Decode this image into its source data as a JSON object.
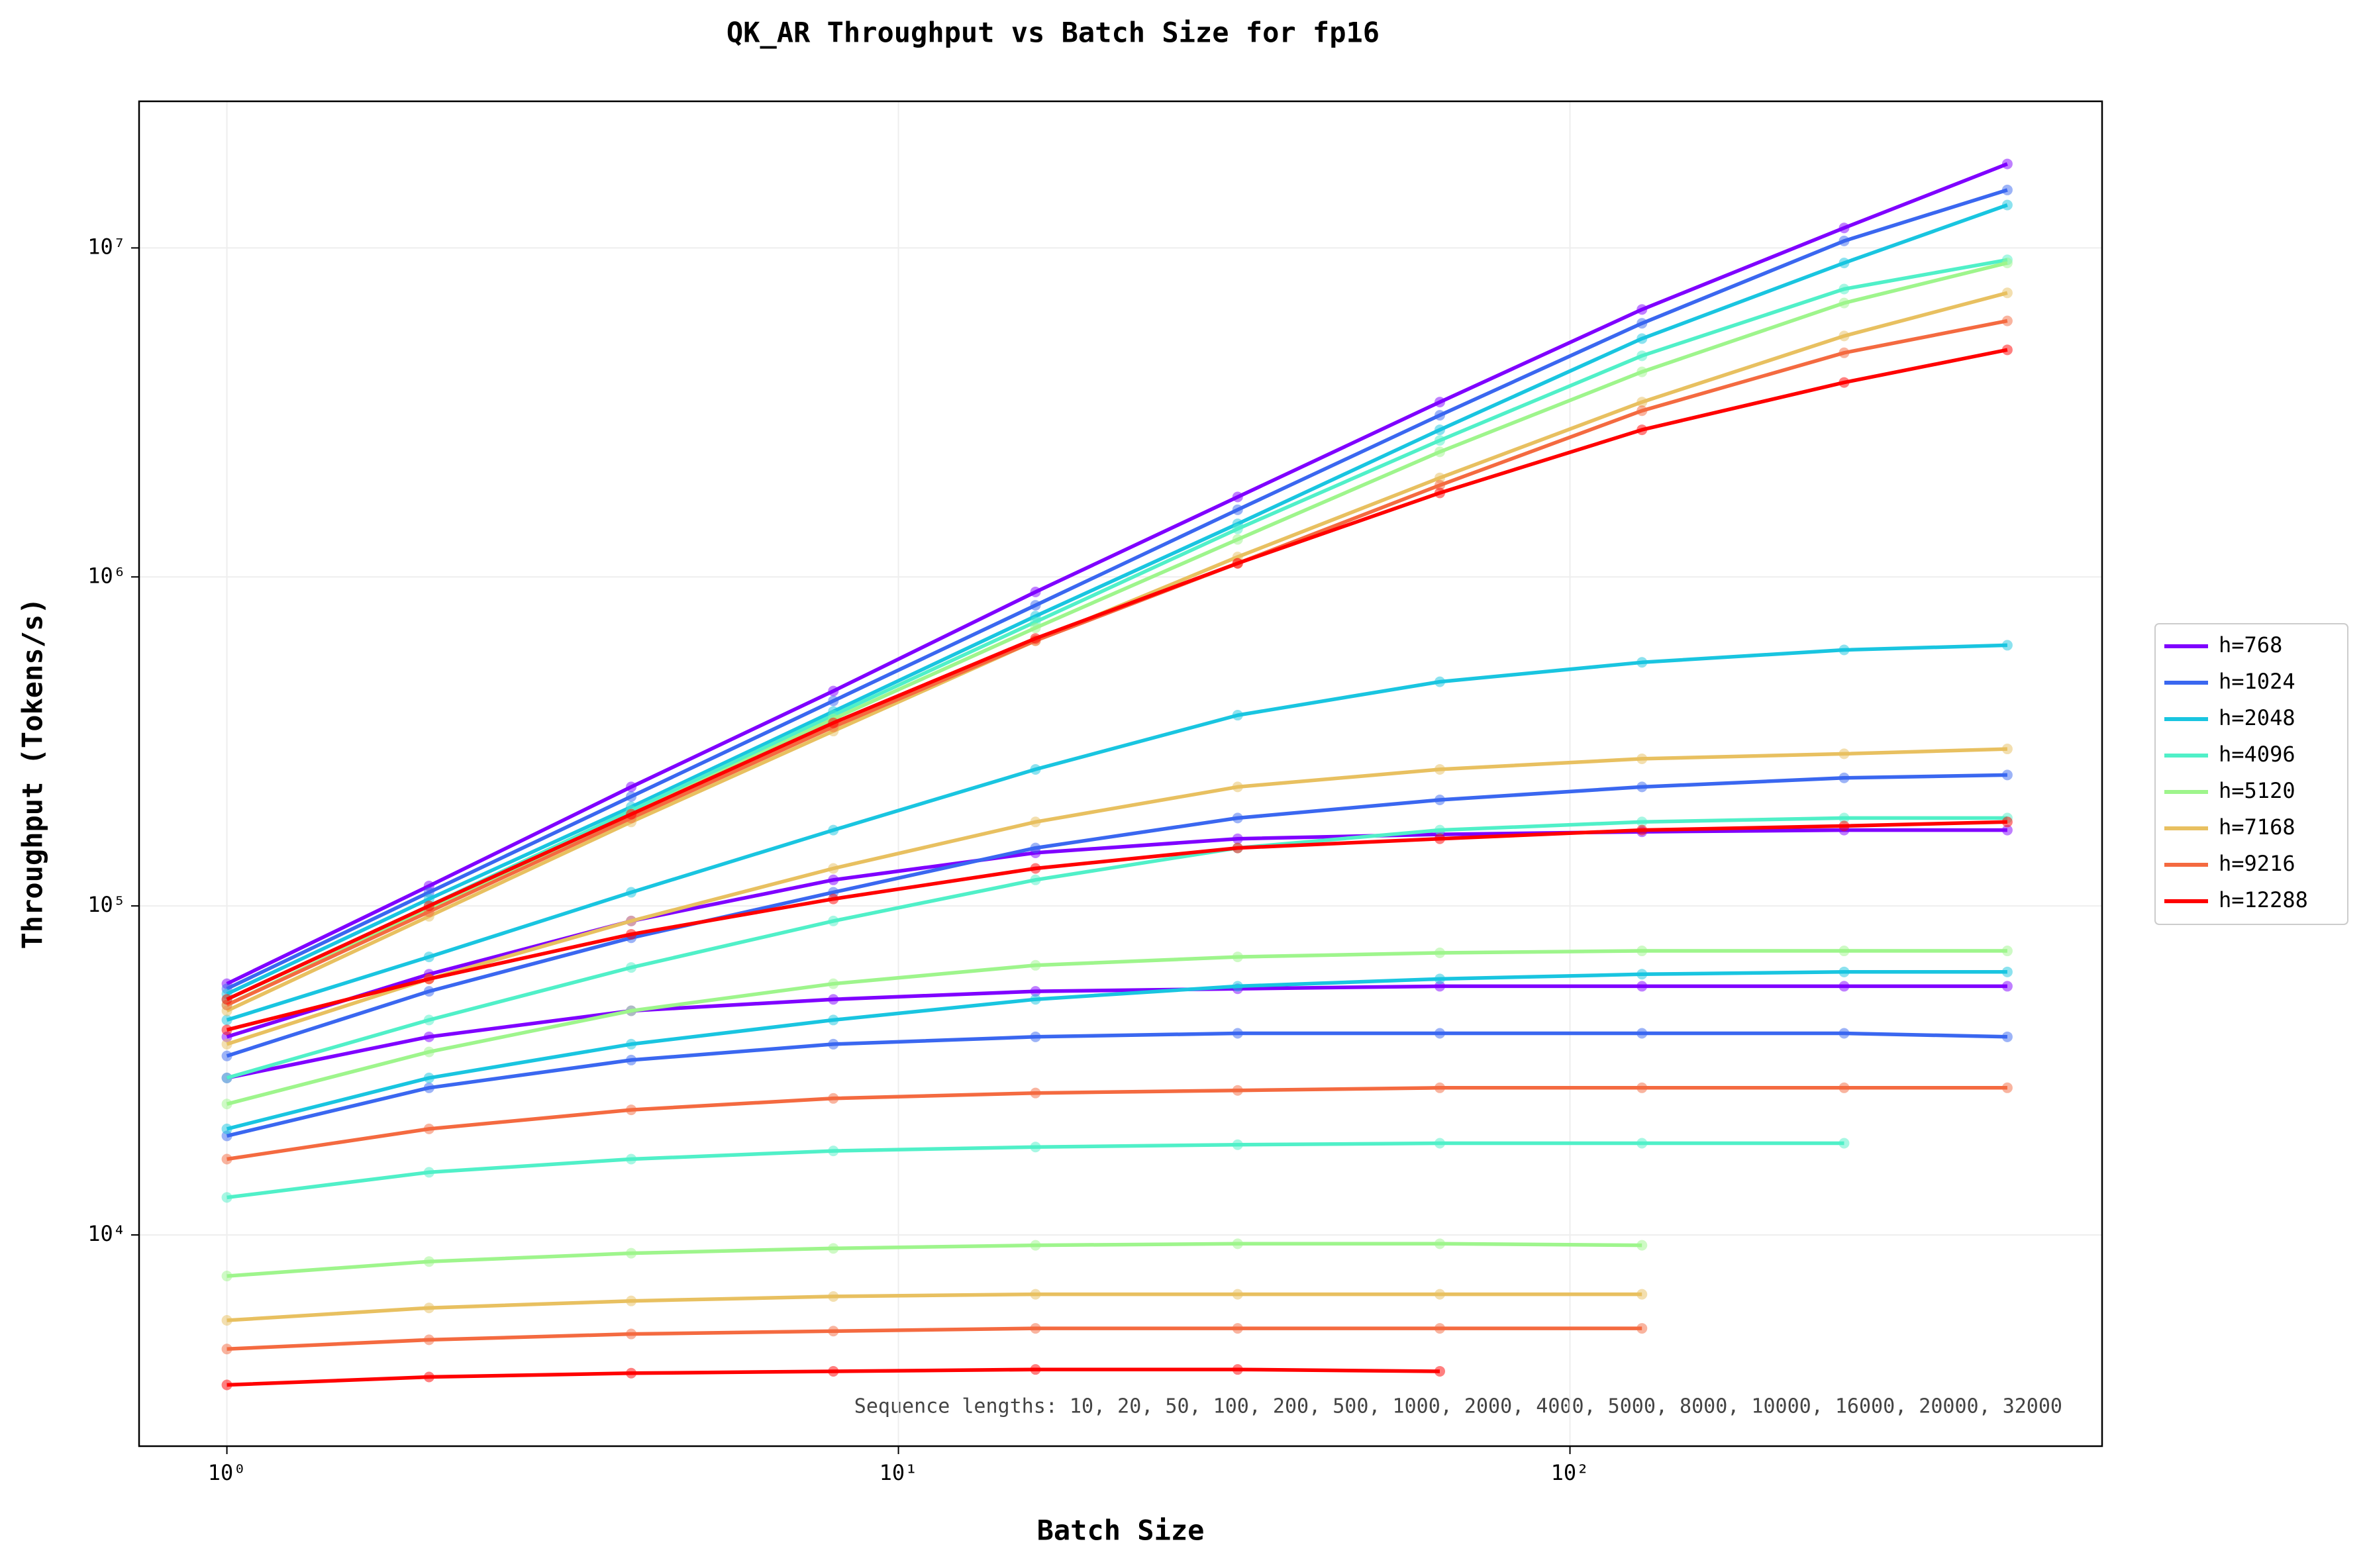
{
  "chart_data": {
    "type": "line",
    "title": "QK_AR Throughput vs Batch Size for fp16",
    "x_label": "Batch Size",
    "y_label": "Throughput (Tokens/s)",
    "annotation": "Sequence lengths: 10, 20, 50, 100, 200, 500, 1000, 2000, 4000, 5000, 8000, 10000, 16000, 20000, 32000",
    "log_x": true,
    "log_y": true,
    "grid": true,
    "legend": "right",
    "x": [
      1,
      2,
      4,
      8,
      16,
      32,
      64,
      128,
      256,
      448
    ],
    "xlim": [
      0.74,
      620
    ],
    "xticks": [
      {
        "value": 1,
        "label": "10⁰"
      },
      {
        "value": 10,
        "label": "10¹"
      },
      {
        "value": 100,
        "label": "10²"
      }
    ],
    "ylim": [
      2280,
      27900000
    ],
    "yticks": [
      {
        "value": 10000,
        "label": "10⁴"
      },
      {
        "value": 100000,
        "label": "10⁵"
      },
      {
        "value": 1000000,
        "label": "10⁶"
      },
      {
        "value": 10000000,
        "label": "10⁷"
      }
    ],
    "series": [
      {
        "name": "h=768",
        "color": "#7f00ff",
        "lines": [
          [
            58000,
            115000,
            230000,
            450000,
            900000,
            1750000,
            3400000,
            6500000,
            11500000,
            18000000
          ],
          [
            40000,
            62000,
            90000,
            120000,
            145000,
            160000,
            165000,
            168000,
            170000,
            170000
          ],
          [
            30000,
            40000,
            48000,
            52000,
            55000,
            56000,
            57000,
            57000,
            57000,
            57000
          ]
        ]
      },
      {
        "name": "h=1024",
        "color": "#3a67f0",
        "lines": [
          [
            56000,
            110000,
            215000,
            420000,
            820000,
            1600000,
            3100000,
            5900000,
            10500000,
            15000000
          ],
          [
            35000,
            55000,
            80000,
            110000,
            150000,
            185000,
            210000,
            230000,
            245000,
            250000
          ],
          [
            20000,
            28000,
            34000,
            38000,
            40000,
            41000,
            41000,
            41000,
            41000,
            40000
          ]
        ]
      },
      {
        "name": "h=2048",
        "color": "#19c5e0",
        "lines": [
          [
            54000,
            105000,
            200000,
            390000,
            760000,
            1450000,
            2800000,
            5300000,
            9000000,
            13500000
          ],
          [
            45000,
            70000,
            110000,
            170000,
            260000,
            380000,
            480000,
            550000,
            600000,
            620000
          ],
          [
            21000,
            30000,
            38000,
            45000,
            52000,
            57000,
            60000,
            62000,
            63000,
            63000
          ]
        ]
      },
      {
        "name": "h=4096",
        "color": "#50f0c8",
        "lines": [
          [
            52000,
            100000,
            195000,
            380000,
            730000,
            1400000,
            2600000,
            4700000,
            7500000,
            9200000
          ],
          [
            30000,
            45000,
            65000,
            90000,
            120000,
            150000,
            170000,
            180000,
            185000,
            185000
          ],
          [
            13000,
            15500,
            17000,
            18000,
            18500,
            18800,
            19000,
            19000,
            19000,
            null
          ]
        ]
      },
      {
        "name": "h=5120",
        "color": "#9ef58c",
        "lines": [
          [
            50000,
            98000,
            190000,
            370000,
            700000,
            1300000,
            2400000,
            4200000,
            6800000,
            9000000
          ],
          [
            25000,
            36000,
            48000,
            58000,
            66000,
            70000,
            72000,
            73000,
            73000,
            73000
          ],
          [
            7500,
            8300,
            8800,
            9100,
            9300,
            9400,
            9400,
            9300,
            null,
            null
          ]
        ]
      },
      {
        "name": "h=7168",
        "color": "#e8c060",
        "lines": [
          [
            48000,
            93000,
            180000,
            340000,
            640000,
            1150000,
            2000000,
            3400000,
            5400000,
            7300000
          ],
          [
            38000,
            60000,
            90000,
            130000,
            180000,
            230000,
            260000,
            280000,
            290000,
            300000
          ],
          [
            5500,
            6000,
            6300,
            6500,
            6600,
            6600,
            6600,
            6600,
            null,
            null
          ]
        ]
      },
      {
        "name": "h=9216",
        "color": "#f46a40",
        "lines": [
          [
            50000,
            96000,
            185000,
            350000,
            640000,
            1100000,
            1900000,
            3200000,
            4800000,
            6000000
          ],
          [
            17000,
            21000,
            24000,
            26000,
            27000,
            27500,
            28000,
            28000,
            28000,
            28000
          ],
          [
            4500,
            4800,
            5000,
            5100,
            5200,
            5200,
            5200,
            5200,
            null,
            null
          ]
        ]
      },
      {
        "name": "h=12288",
        "color": "#ff0000",
        "lines": [
          [
            52000,
            100000,
            190000,
            360000,
            650000,
            1100000,
            1800000,
            2800000,
            3900000,
            4900000
          ],
          [
            42000,
            60000,
            82000,
            105000,
            130000,
            150000,
            160000,
            170000,
            175000,
            180000
          ],
          [
            3500,
            3700,
            3800,
            3850,
            3900,
            3900,
            3850,
            null,
            null,
            null
          ]
        ]
      }
    ]
  }
}
